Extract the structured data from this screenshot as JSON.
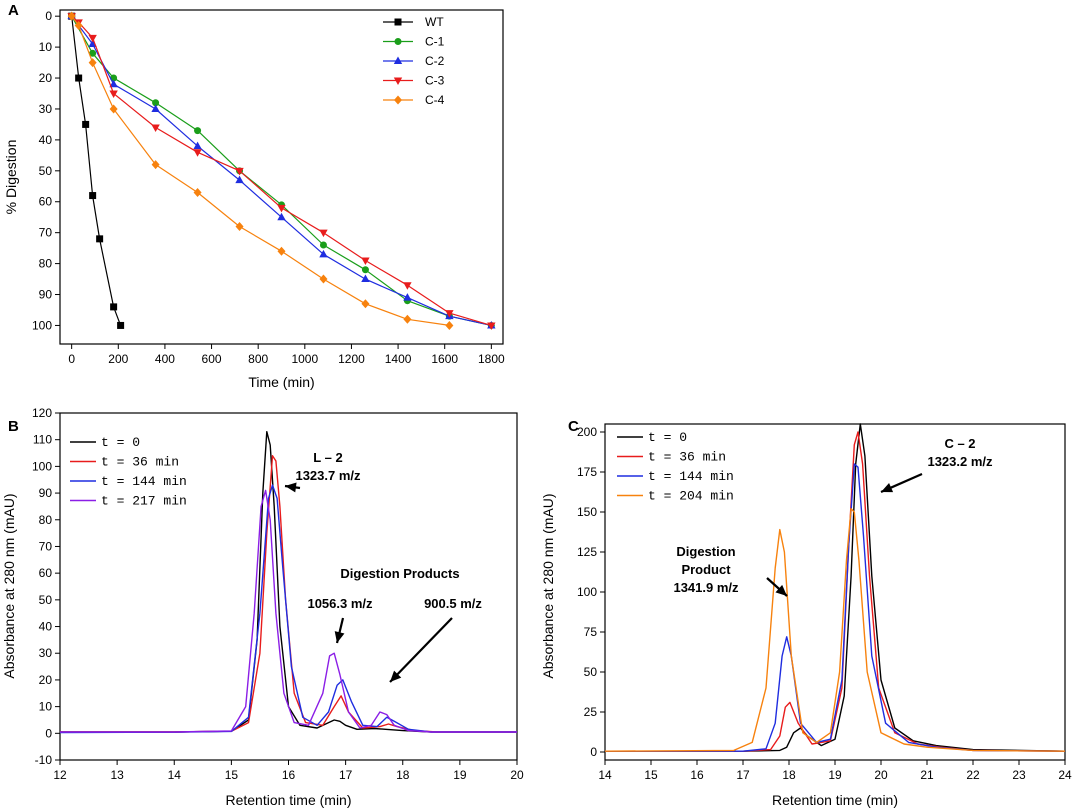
{
  "chart_data": [
    {
      "panel": "A",
      "type": "line",
      "title": "",
      "xlabel": "Time (min)",
      "ylabel": "% Digestion",
      "xlim": [
        -50,
        1850
      ],
      "ylim": [
        -2,
        106
      ],
      "y_inverted": true,
      "xticks": [
        0,
        200,
        400,
        600,
        800,
        1000,
        1200,
        1400,
        1600,
        1800
      ],
      "yticks": [
        0,
        10,
        20,
        30,
        40,
        50,
        60,
        70,
        80,
        90,
        100
      ],
      "legend_position": "top-right",
      "series": [
        {
          "name": "WT",
          "color": "#000000",
          "marker": "square",
          "x": [
            0,
            30,
            60,
            90,
            120,
            180,
            210
          ],
          "y": [
            0,
            20,
            35,
            58,
            72,
            94,
            100
          ]
        },
        {
          "name": "C-1",
          "color": "#1a9e1a",
          "marker": "circle",
          "x": [
            0,
            90,
            180,
            360,
            540,
            720,
            900,
            1080,
            1260,
            1440,
            1620,
            1800
          ],
          "y": [
            0,
            12,
            20,
            28,
            37,
            50,
            61,
            74,
            82,
            92,
            97,
            100
          ]
        },
        {
          "name": "C-2",
          "color": "#1f2de0",
          "marker": "triangle-up",
          "x": [
            0,
            90,
            180,
            360,
            540,
            720,
            900,
            1080,
            1260,
            1440,
            1620,
            1800
          ],
          "y": [
            0,
            9,
            22,
            30,
            42,
            53,
            65,
            77,
            85,
            91,
            97,
            100
          ]
        },
        {
          "name": "C-3",
          "color": "#e81c1c",
          "marker": "triangle-down",
          "x": [
            0,
            30,
            90,
            180,
            360,
            540,
            720,
            900,
            1080,
            1260,
            1440,
            1620,
            1800
          ],
          "y": [
            0,
            2,
            7,
            25,
            36,
            44,
            50,
            62,
            70,
            79,
            87,
            96,
            100
          ]
        },
        {
          "name": "C-4",
          "color": "#f7820e",
          "marker": "diamond",
          "x": [
            0,
            30,
            90,
            180,
            360,
            540,
            720,
            900,
            1080,
            1260,
            1440,
            1620
          ],
          "y": [
            0,
            3,
            15,
            30,
            48,
            57,
            68,
            76,
            85,
            93,
            98,
            100
          ]
        }
      ]
    },
    {
      "panel": "B",
      "type": "line",
      "title": "",
      "xlabel": "Retention time (min)",
      "ylabel": "Absorbance at 280 nm (mAU)",
      "xlim": [
        12,
        20
      ],
      "ylim": [
        -10,
        120
      ],
      "xticks": [
        12,
        13,
        14,
        15,
        16,
        17,
        18,
        19,
        20
      ],
      "yticks": [
        -10,
        0,
        10,
        20,
        30,
        40,
        50,
        60,
        70,
        80,
        90,
        100,
        110,
        120
      ],
      "legend_position": "top-left",
      "series": [
        {
          "name": "t = 0",
          "color": "#000000",
          "x": [
            12,
            14,
            15,
            15.3,
            15.45,
            15.55,
            15.62,
            15.68,
            15.75,
            15.85,
            16.0,
            16.2,
            16.5,
            16.8,
            16.9,
            17.0,
            17.2,
            17.5,
            17.7,
            18.0,
            18.5,
            20
          ],
          "y": [
            0.5,
            0.5,
            0.8,
            5,
            35,
            90,
            113,
            108,
            85,
            40,
            10,
            3,
            2,
            5,
            4.5,
            3,
            1.5,
            1.8,
            1.5,
            1,
            0.5,
            0.5
          ]
        },
        {
          "name": "t = 36 min",
          "color": "#e81c1c",
          "x": [
            12,
            14,
            15,
            15.3,
            15.5,
            15.62,
            15.72,
            15.78,
            15.85,
            15.95,
            16.1,
            16.3,
            16.6,
            16.8,
            16.92,
            17.05,
            17.3,
            17.6,
            17.75,
            17.9,
            18.2,
            18.6,
            20
          ],
          "y": [
            0.5,
            0.5,
            0.8,
            4,
            30,
            75,
            104,
            102,
            85,
            50,
            15,
            4,
            3,
            10,
            14,
            8,
            2,
            2.5,
            3.5,
            2.5,
            1,
            0.5,
            0.5
          ]
        },
        {
          "name": "t = 144 min",
          "color": "#1f2de0",
          "x": [
            12,
            14,
            15,
            15.3,
            15.5,
            15.65,
            15.72,
            15.8,
            15.9,
            16.05,
            16.25,
            16.5,
            16.7,
            16.85,
            16.95,
            17.1,
            17.3,
            17.55,
            17.72,
            17.85,
            18.1,
            18.5,
            20
          ],
          "y": [
            0.3,
            0.4,
            0.7,
            6,
            45,
            88,
            93,
            88,
            62,
            25,
            6,
            3,
            8,
            18,
            20,
            12,
            3,
            2.5,
            6,
            4.5,
            1.5,
            0.5,
            0.5
          ]
        },
        {
          "name": "t = 217 min",
          "color": "#8b1ee6",
          "x": [
            12,
            14,
            15,
            15.25,
            15.4,
            15.52,
            15.6,
            15.68,
            15.78,
            15.92,
            16.1,
            16.35,
            16.6,
            16.72,
            16.8,
            16.9,
            17.05,
            17.25,
            17.45,
            17.6,
            17.72,
            17.85,
            18.1,
            18.5,
            20
          ],
          "y": [
            0.5,
            0.5,
            0.9,
            10,
            45,
            85,
            91,
            80,
            45,
            15,
            4,
            3,
            15,
            29,
            30,
            22,
            8,
            2,
            3,
            8,
            7,
            3,
            1,
            0.5,
            0.5
          ]
        }
      ],
      "annotations": [
        {
          "lines": [
            "L – 2",
            "1323.7  m/z"
          ]
        },
        {
          "lines": [
            "Digestion  Products"
          ]
        },
        {
          "lines": [
            "1056.3  m/z"
          ]
        },
        {
          "lines": [
            "900.5  m/z"
          ]
        }
      ]
    },
    {
      "panel": "C",
      "type": "line",
      "title": "",
      "xlabel": "Retention time (min)",
      "ylabel": "Absorbance at 280 nm (mAU)",
      "xlim": [
        14,
        24
      ],
      "ylim": [
        -5,
        205
      ],
      "xticks": [
        14,
        15,
        16,
        17,
        18,
        19,
        20,
        21,
        22,
        23,
        24
      ],
      "yticks": [
        0,
        25,
        50,
        75,
        100,
        125,
        150,
        175,
        200
      ],
      "legend_position": "top-left",
      "series": [
        {
          "name": "t = 0",
          "color": "#000000",
          "x": [
            14,
            17,
            17.8,
            17.95,
            18.1,
            18.25,
            18.4,
            18.7,
            19.0,
            19.2,
            19.35,
            19.45,
            19.55,
            19.65,
            19.8,
            20.0,
            20.3,
            20.7,
            21.2,
            22,
            24
          ],
          "y": [
            0.5,
            0.5,
            1,
            3,
            12,
            15,
            10,
            4,
            8,
            35,
            110,
            180,
            205,
            185,
            110,
            45,
            15,
            7,
            4,
            1.5,
            0.5
          ]
        },
        {
          "name": "t = 36 min",
          "color": "#e81c1c",
          "x": [
            14,
            17,
            17.6,
            17.8,
            17.92,
            18.02,
            18.2,
            18.5,
            18.9,
            19.15,
            19.3,
            19.42,
            19.5,
            19.6,
            19.75,
            19.95,
            20.3,
            20.8,
            21.3,
            22,
            24
          ],
          "y": [
            0.5,
            0.5,
            1.5,
            10,
            28,
            31,
            18,
            5,
            7,
            40,
            130,
            192,
            200,
            180,
            110,
            40,
            12,
            5,
            3,
            1,
            0.5
          ]
        },
        {
          "name": "t = 144 min",
          "color": "#1f2de0",
          "x": [
            14,
            17,
            17.5,
            17.7,
            17.85,
            17.95,
            18.05,
            18.25,
            18.6,
            18.9,
            19.15,
            19.3,
            19.42,
            19.5,
            19.62,
            19.8,
            20.1,
            20.6,
            21.2,
            22,
            24
          ],
          "y": [
            0.5,
            0.5,
            2,
            18,
            60,
            72,
            60,
            18,
            6,
            8,
            45,
            130,
            180,
            178,
            135,
            60,
            18,
            6,
            3,
            1,
            0.5
          ]
        },
        {
          "name": "t = 204 min",
          "color": "#f7820e",
          "x": [
            14,
            16.8,
            17.2,
            17.5,
            17.7,
            17.8,
            17.9,
            18.05,
            18.3,
            18.6,
            18.9,
            19.1,
            19.25,
            19.35,
            19.42,
            19.52,
            19.7,
            20.0,
            20.5,
            21.0,
            22,
            24
          ],
          "y": [
            0.5,
            1,
            6,
            40,
            115,
            139,
            125,
            60,
            12,
            6,
            12,
            50,
            120,
            152,
            150,
            120,
            50,
            12,
            5,
            3,
            1,
            0.5
          ]
        }
      ],
      "annotations": [
        {
          "lines": [
            "C – 2",
            "1323.2  m/z"
          ]
        },
        {
          "lines": [
            "Digestion",
            "Product",
            "1341.9  m/z"
          ]
        }
      ]
    }
  ]
}
